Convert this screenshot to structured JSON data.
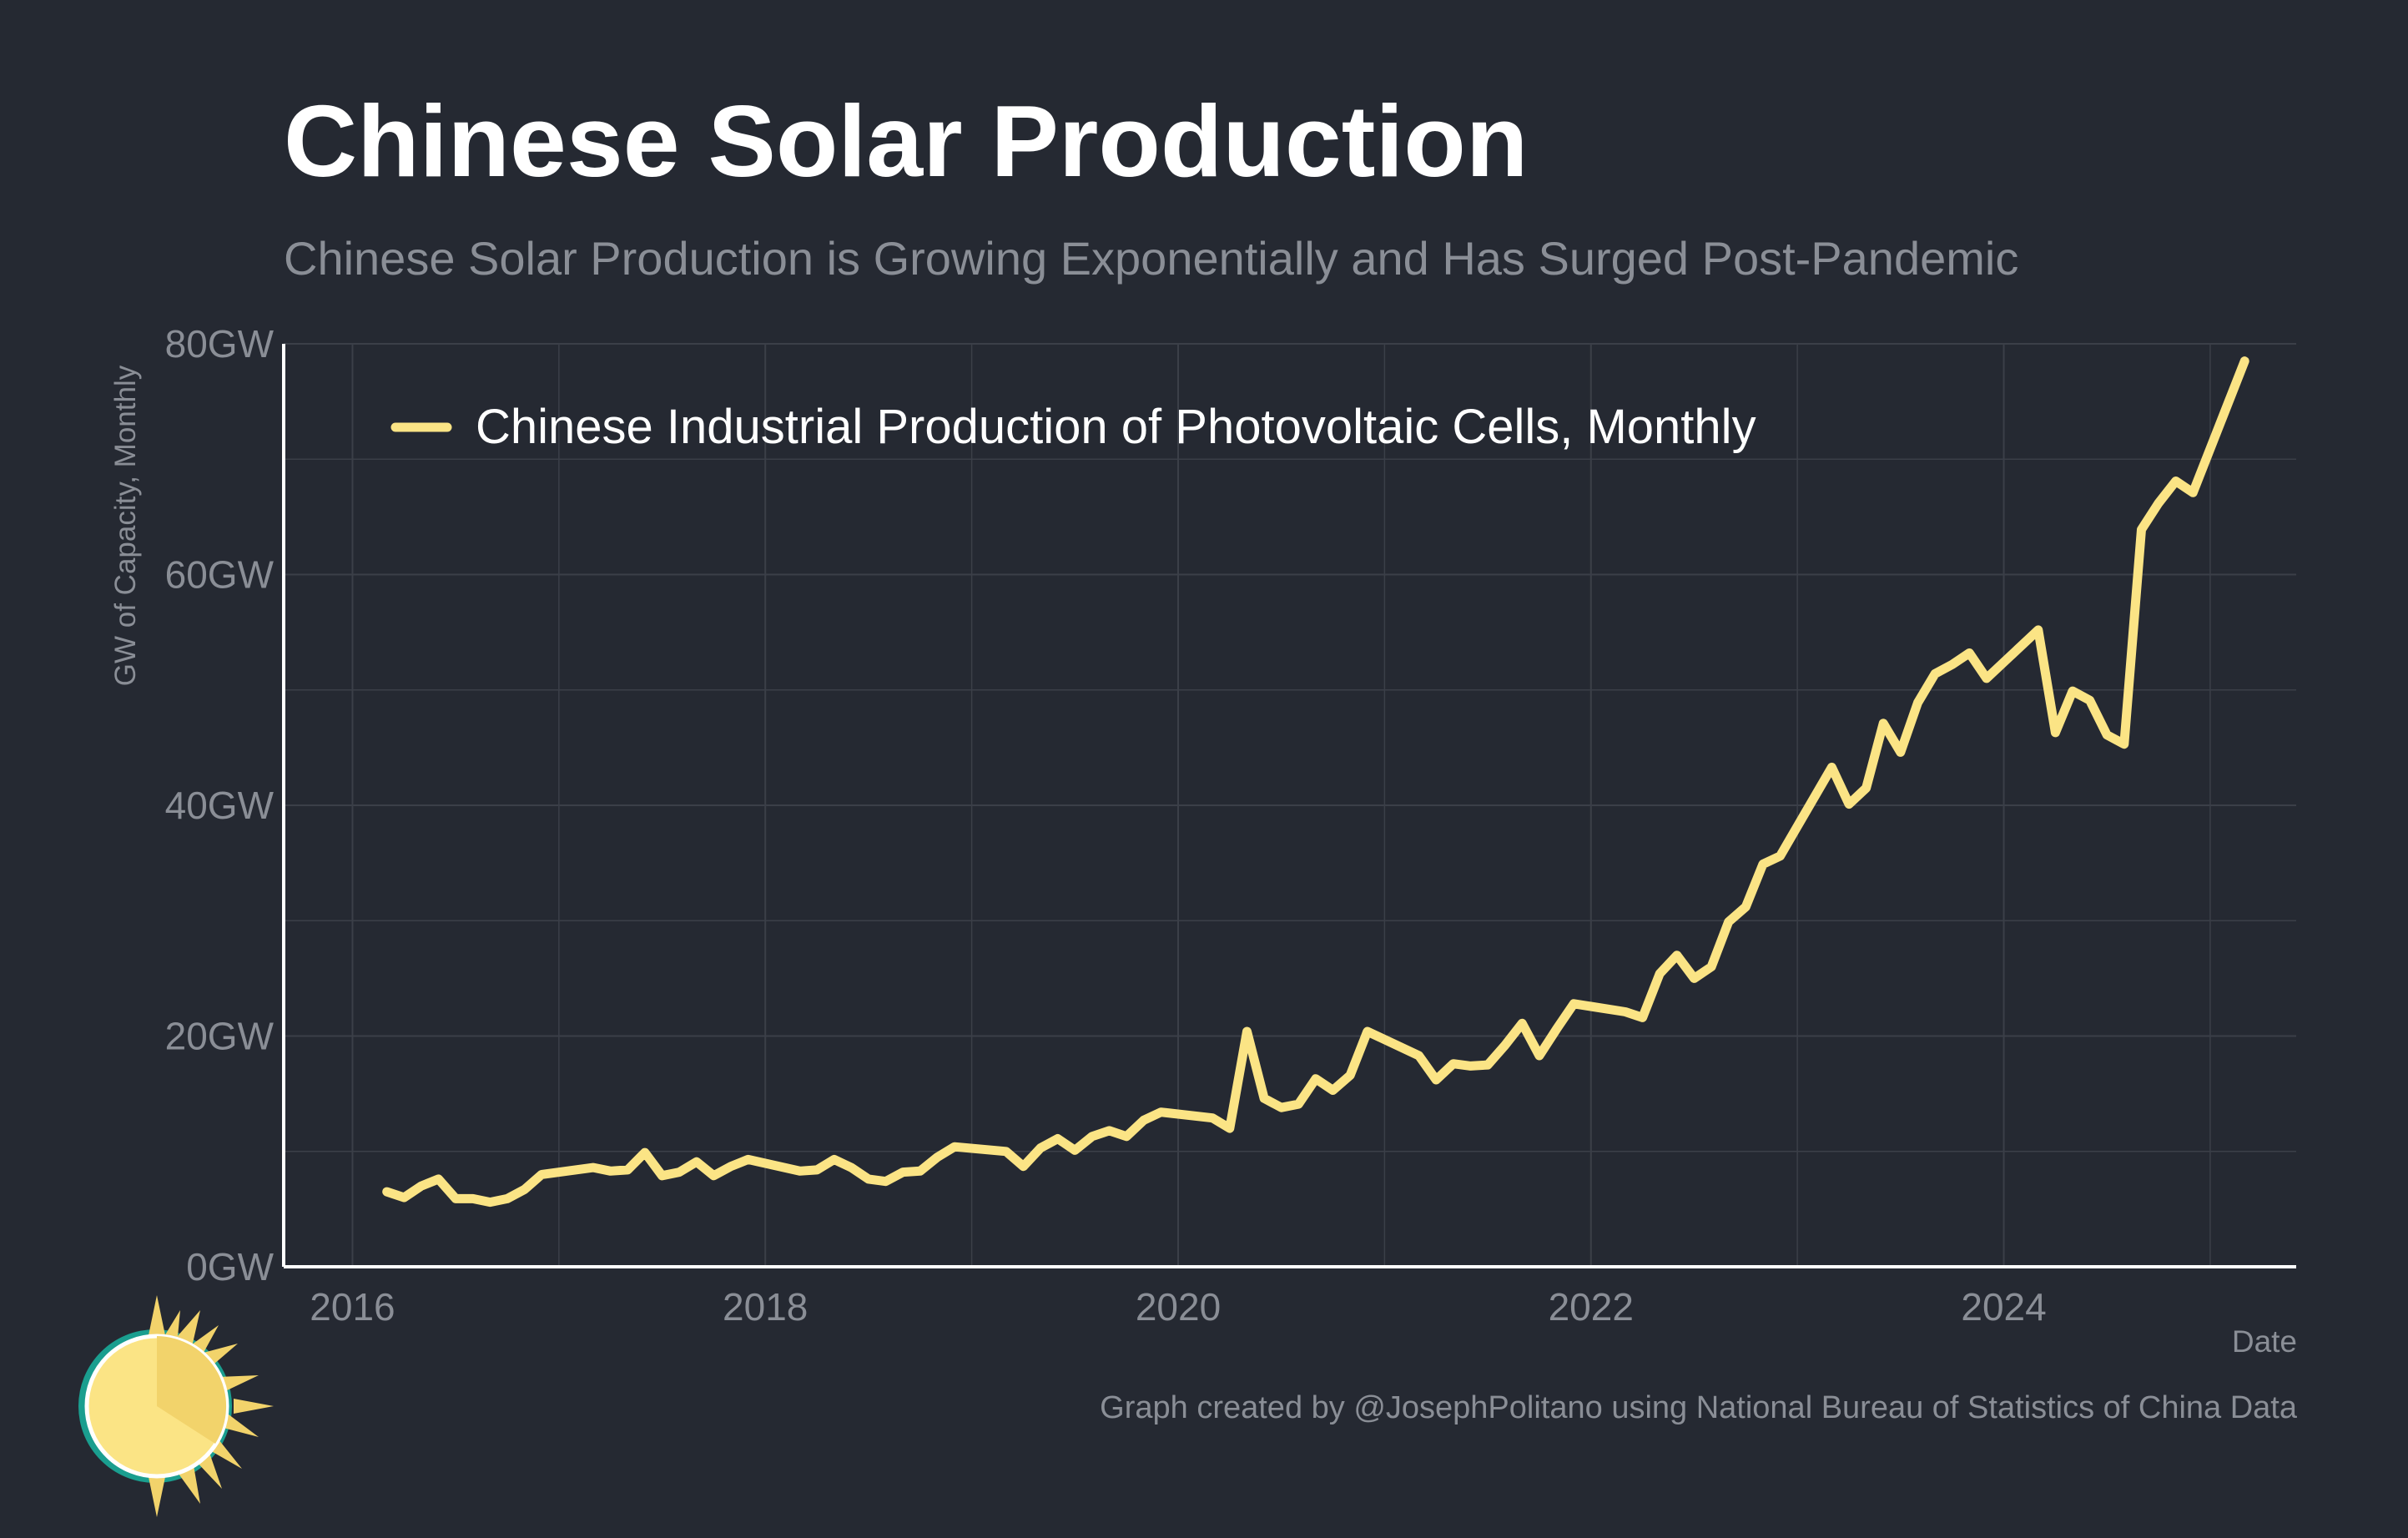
{
  "title": "Chinese Solar Production",
  "subtitle": "Chinese Solar Production is Growing Exponentially and Has Surged Post-Pandemic",
  "caption": "Graph created by @JosephPolitano using National Bureau of Statistics of China Data",
  "logo": "sun-icon",
  "colors": {
    "background": "#252932",
    "line": "#FBE485",
    "grid": "#3b3f48",
    "axis": "#ffffff",
    "muted_text": "#8a8e96"
  },
  "chart_data": {
    "type": "line",
    "xlabel": "Date",
    "ylabel": "GW of Capacity, Monthly",
    "ylim": [
      0,
      80
    ],
    "xlim": [
      "2015-09",
      "2025-06"
    ],
    "y_ticks": [
      0,
      20,
      40,
      60,
      80
    ],
    "y_tick_labels": [
      "0GW",
      "20GW",
      "40GW",
      "60GW",
      "80GW"
    ],
    "x_ticks": [
      "2016-01",
      "2018-01",
      "2020-01",
      "2022-01",
      "2024-01"
    ],
    "x_tick_labels": [
      "2016",
      "2018",
      "2020",
      "2022",
      "2024"
    ],
    "grid": true,
    "legend_position": "top-left",
    "series": [
      {
        "name": "Chinese Industrial Production of Photovoltaic Cells, Monthly",
        "x": [
          "2016-03",
          "2016-04",
          "2016-05",
          "2016-06",
          "2016-07",
          "2016-08",
          "2016-09",
          "2016-10",
          "2016-11",
          "2016-12",
          "2017-03",
          "2017-04",
          "2017-05",
          "2017-06",
          "2017-07",
          "2017-08",
          "2017-09",
          "2017-10",
          "2017-11",
          "2017-12",
          "2018-03",
          "2018-04",
          "2018-05",
          "2018-06",
          "2018-07",
          "2018-08",
          "2018-09",
          "2018-10",
          "2018-11",
          "2018-12",
          "2019-03",
          "2019-04",
          "2019-05",
          "2019-06",
          "2019-07",
          "2019-08",
          "2019-09",
          "2019-10",
          "2019-11",
          "2019-12",
          "2020-03",
          "2020-04",
          "2020-05",
          "2020-06",
          "2020-07",
          "2020-08",
          "2020-09",
          "2020-10",
          "2020-11",
          "2020-12",
          "2021-03",
          "2021-04",
          "2021-05",
          "2021-06",
          "2021-07",
          "2021-08",
          "2021-09",
          "2021-10",
          "2021-11",
          "2021-12",
          "2022-03",
          "2022-04",
          "2022-05",
          "2022-06",
          "2022-07",
          "2022-08",
          "2022-09",
          "2022-10",
          "2022-11",
          "2022-12",
          "2023-03",
          "2023-04",
          "2023-05",
          "2023-06",
          "2023-07",
          "2023-08",
          "2023-09",
          "2023-10",
          "2023-11",
          "2023-12",
          "2024-03",
          "2024-04",
          "2024-05",
          "2024-06",
          "2024-07",
          "2024-08",
          "2024-09",
          "2024-10",
          "2024-11",
          "2024-12",
          "2025-03"
        ],
        "values": [
          6.5,
          6.0,
          7.0,
          7.6,
          5.9,
          5.9,
          5.6,
          5.9,
          6.7,
          8.0,
          8.6,
          8.3,
          8.4,
          9.9,
          7.9,
          8.2,
          9.1,
          7.9,
          8.7,
          9.3,
          8.3,
          8.4,
          9.3,
          8.6,
          7.6,
          7.4,
          8.2,
          8.3,
          9.5,
          10.4,
          10.0,
          8.7,
          10.3,
          11.1,
          10.1,
          11.3,
          11.8,
          11.3,
          12.7,
          13.4,
          12.9,
          12.0,
          20.4,
          14.6,
          13.8,
          14.1,
          16.3,
          15.3,
          16.6,
          20.4,
          18.3,
          16.2,
          17.6,
          17.4,
          17.5,
          19.2,
          21.1,
          18.3,
          20.6,
          22.8,
          22.1,
          21.6,
          25.4,
          27.0,
          25.0,
          26.0,
          29.9,
          31.2,
          34.9,
          35.6,
          43.3,
          40.1,
          41.5,
          47.1,
          44.6,
          48.9,
          51.4,
          52.2,
          53.2,
          51.0,
          55.2,
          46.3,
          49.9,
          49.1,
          46.1,
          45.3,
          63.9,
          66.2,
          68.1,
          67.1,
          78.5
        ]
      }
    ]
  }
}
